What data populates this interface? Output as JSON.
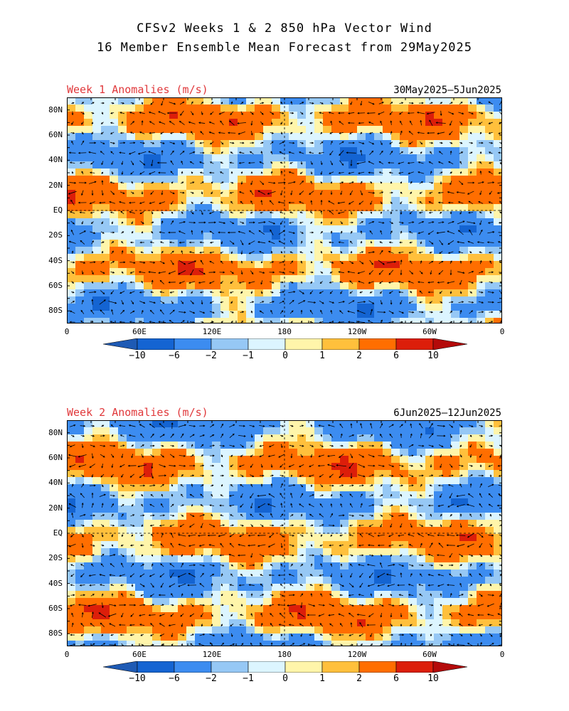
{
  "title": {
    "line1": "CFSv2 Weeks 1 & 2 850 hPa Vector Wind",
    "line2": "16 Member Ensemble Mean Forecast from 29May2025"
  },
  "panels": [
    {
      "id": "week1",
      "label": "Week 1 Anomalies (m/s)",
      "dates": "30May2025—5Jun2025"
    },
    {
      "id": "week2",
      "label": "Week 2 Anomalies (m/s)",
      "dates": "6Jun2025—12Jun2025"
    }
  ],
  "lat_labels": [
    "80N",
    "60N",
    "40N",
    "20N",
    "EQ",
    "20S",
    "40S",
    "60S",
    "80S"
  ],
  "lon_labels": [
    "0",
    "60E",
    "120E",
    "180",
    "120W",
    "60W",
    "0"
  ],
  "colorbar": {
    "ticks": [
      "−10",
      "−6",
      "−2",
      "−1",
      "0",
      "1",
      "2",
      "6",
      "10"
    ],
    "colors": [
      "#1464d2",
      "#3c8cf0",
      "#96c8f5",
      "#dcf5ff",
      "#fff5aa",
      "#ffc03c",
      "#ff6e00",
      "#dc1e0a"
    ],
    "end_low": "#1e5ab4",
    "end_high": "#b40a0a"
  }
}
